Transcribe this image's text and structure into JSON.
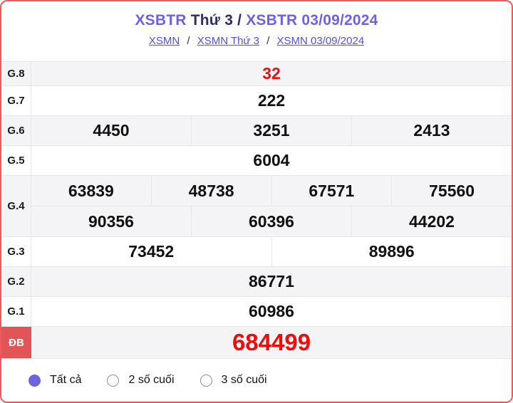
{
  "header": {
    "title": {
      "station": "XSBTR",
      "day_part": "Thứ 3 /",
      "date_part": "XSBTR 03/09/2024"
    },
    "breadcrumb": {
      "links": [
        "XSMN",
        "XSMN Thứ 3",
        "XSMN 03/09/2024"
      ],
      "separator": "/"
    }
  },
  "table": {
    "g8": {
      "label": "G.8",
      "value": "32"
    },
    "g7": {
      "label": "G.7",
      "value": "222"
    },
    "g6": {
      "label": "G.6",
      "values": [
        "4450",
        "3251",
        "2413"
      ]
    },
    "g5": {
      "label": "G.5",
      "value": "6004"
    },
    "g4": {
      "label": "G.4",
      "row1": [
        "63839",
        "48738",
        "67571",
        "75560"
      ],
      "row2": [
        "90356",
        "60396",
        "44202"
      ]
    },
    "g3": {
      "label": "G.3",
      "values": [
        "73452",
        "89896"
      ]
    },
    "g2": {
      "label": "G.2",
      "value": "86771"
    },
    "g1": {
      "label": "G.1",
      "value": "60986"
    },
    "db": {
      "label": "ĐB",
      "value": "684499"
    }
  },
  "filters": {
    "options": [
      {
        "label": "Tất cả",
        "selected": true
      },
      {
        "label": "2 số cuối",
        "selected": false
      },
      {
        "label": "3 số cuối",
        "selected": false
      }
    ]
  },
  "colors": {
    "border_red": "#ee5a5b",
    "badge_red": "#e25556",
    "number_red": "#ec0d0d",
    "title_purple": "#6e62e4",
    "title_navy": "#2e2e5f",
    "link_purple": "#574fd6",
    "row_shade": "#f4f4f6",
    "accent_radio": "#6c63e0"
  }
}
